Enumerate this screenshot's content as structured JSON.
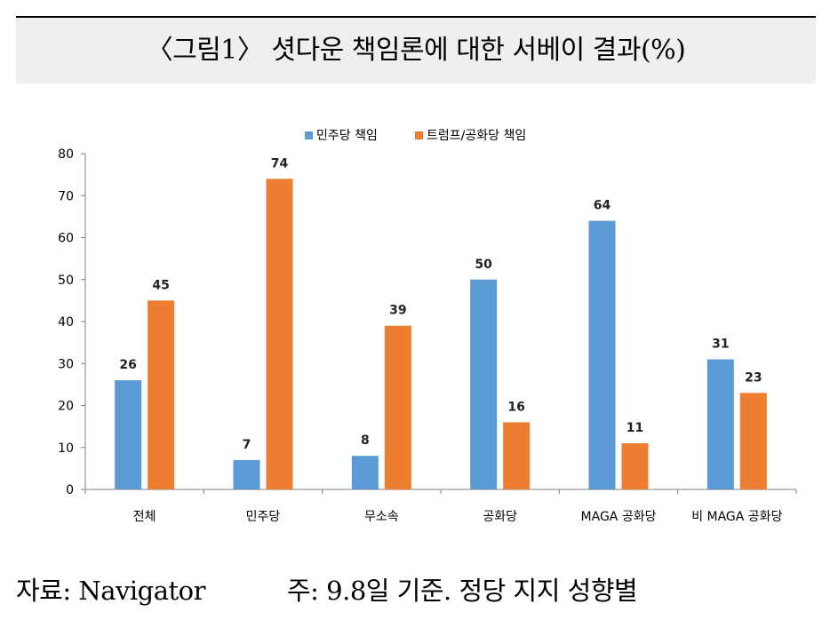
{
  "title": "〈그림1〉 셧다운 책임론에 대한 서베이 결과(%)",
  "footer": {
    "source": "자료: Navigator",
    "note": "주: 9.8일 기준. 정당 지지 성향별"
  },
  "colors": {
    "series1": "#5b9bd5",
    "series2": "#ed7d31",
    "axis": "#7f7f7f"
  },
  "chart_data": {
    "type": "bar",
    "title": "",
    "xlabel": "",
    "ylabel": "",
    "ylim": [
      0,
      80
    ],
    "yticks": [
      0,
      10,
      20,
      30,
      40,
      50,
      60,
      70,
      80
    ],
    "grid": false,
    "legend_position": "top",
    "categories": [
      "전체",
      "민주당",
      "무소속",
      "공화당",
      "MAGA 공화당",
      "비 MAGA 공화당"
    ],
    "series": [
      {
        "name": "민주당 책임",
        "values": [
          26,
          7,
          8,
          50,
          64,
          31
        ]
      },
      {
        "name": "트럼프/공화당 책임",
        "values": [
          45,
          74,
          39,
          16,
          11,
          23
        ]
      }
    ]
  }
}
